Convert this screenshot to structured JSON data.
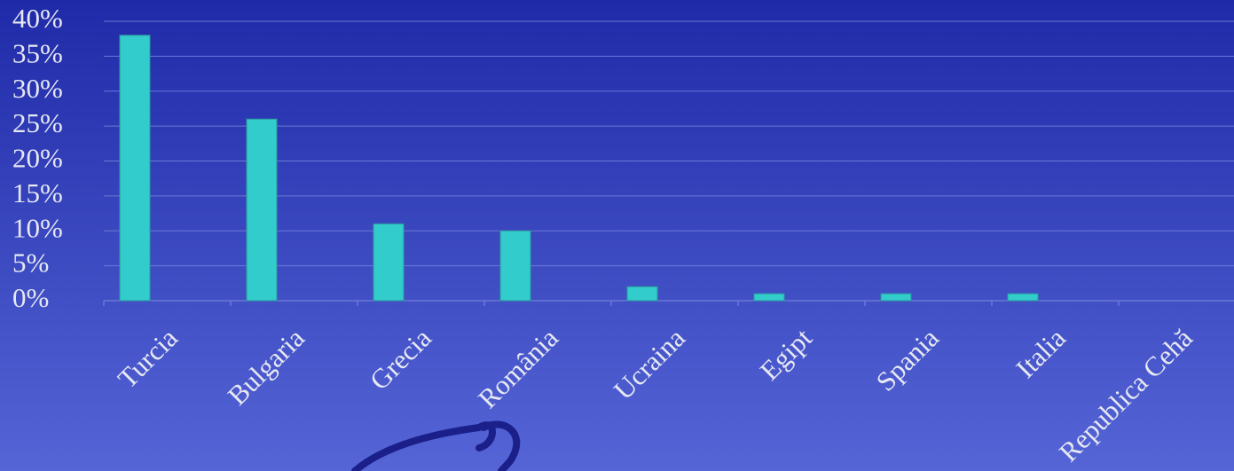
{
  "chart_data": {
    "type": "bar",
    "categories": [
      "Turcia",
      "Bulgaria",
      "Grecia",
      "România",
      "Ucraina",
      "Egipt",
      "Spania",
      "Italia",
      "Republica Cehă"
    ],
    "values": [
      38,
      26,
      11,
      10,
      2,
      1,
      1,
      1,
      0
    ],
    "color": "#33cccc",
    "ylim": [
      0,
      40
    ],
    "yticks": [
      {
        "value": 0,
        "label": "0%"
      },
      {
        "value": 5,
        "label": "5%"
      },
      {
        "value": 10,
        "label": "10%"
      },
      {
        "value": 15,
        "label": "15%"
      },
      {
        "value": 20,
        "label": "20%"
      },
      {
        "value": 25,
        "label": "25%"
      },
      {
        "value": 30,
        "label": "30%"
      },
      {
        "value": 35,
        "label": "35%"
      },
      {
        "value": 40,
        "label": "40%"
      }
    ],
    "grid": true
  }
}
